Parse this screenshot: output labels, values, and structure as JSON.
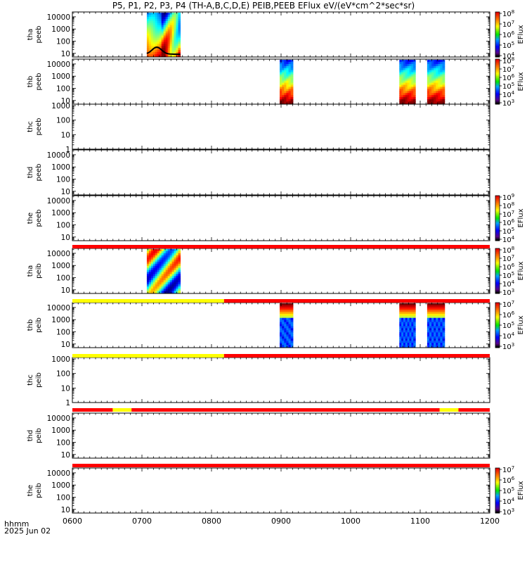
{
  "chart_data": {
    "type": "heatmap",
    "title": "P5, P1, P2, P3, P4 (TH-A,B,C,D,E) PEIB,PEEB EFlux eV/(eV*cm^2*sec*sr)",
    "x_ticks": [
      "0600",
      "0700",
      "0800",
      "0900",
      "1000",
      "1100",
      "1200"
    ],
    "x_range_hours": [
      6,
      12
    ],
    "footer": {
      "hhmm": "hhmm",
      "date": "2025 Jun 02"
    },
    "colorbar_label": "EFlux",
    "panels": [
      {
        "label": [
          "tha",
          "peeb"
        ],
        "y_ticks": [
          "10000",
          "1000",
          "100",
          "10"
        ],
        "ylog": [
          0.7,
          4.4
        ],
        "colorbar": [
          "10^8",
          "10^7",
          "10^6",
          "10^5",
          "10^4"
        ],
        "spectra": [
          {
            "start": 7.07,
            "end": 7.55
          }
        ]
      },
      {
        "label": [
          "thb",
          "peeb"
        ],
        "y_ticks": [
          "10000",
          "1000",
          "100",
          "10"
        ],
        "ylog": [
          0.7,
          4.4
        ],
        "colorbar": [
          "10^8",
          "10^7",
          "10^6",
          "10^5",
          "10^4",
          "10^3"
        ],
        "spectra": [
          {
            "start": 8.98,
            "end": 9.17
          },
          {
            "start": 10.7,
            "end": 10.93
          },
          {
            "start": 11.1,
            "end": 11.35
          }
        ]
      },
      {
        "label": [
          "thc",
          "peeb"
        ],
        "y_ticks": [
          "1000",
          "100",
          "10",
          "1"
        ],
        "ylog": [
          0,
          3.1
        ],
        "colorbar": null,
        "spectra": []
      },
      {
        "label": [
          "thd",
          "peeb"
        ],
        "y_ticks": [
          "10000",
          "1000",
          "100",
          "10"
        ],
        "ylog": [
          0.7,
          4.4
        ],
        "colorbar": null,
        "spectra": []
      },
      {
        "label": [
          "the",
          "peeb"
        ],
        "y_ticks": [
          "10000",
          "1000",
          "100",
          "10"
        ],
        "ylog": [
          0.7,
          4.4
        ],
        "colorbar": [
          "10^9",
          "10^8",
          "10^7",
          "10^6",
          "10^5",
          "10^4"
        ],
        "spectra": []
      },
      {
        "label": [
          "tha",
          "peib"
        ],
        "y_ticks": [
          "10000",
          "1000",
          "100",
          "10"
        ],
        "ylog": [
          0.7,
          4.4
        ],
        "colorbar": [
          "10^8",
          "10^7",
          "10^6",
          "10^5",
          "10^4",
          "10^3"
        ],
        "spectra": [
          {
            "start": 7.07,
            "end": 7.55
          }
        ]
      },
      {
        "label": [
          "thb",
          "peib"
        ],
        "y_ticks": [
          "10000",
          "1000",
          "100",
          "10"
        ],
        "ylog": [
          0.7,
          4.4
        ],
        "colorbar": [
          "10^7",
          "10^6",
          "10^5",
          "10^4",
          "10^3"
        ],
        "spectra": [
          {
            "start": 8.98,
            "end": 9.17
          },
          {
            "start": 10.7,
            "end": 10.93
          },
          {
            "start": 11.1,
            "end": 11.35
          }
        ]
      },
      {
        "label": [
          "thc",
          "peib"
        ],
        "y_ticks": [
          "1000",
          "100",
          "10",
          "1"
        ],
        "ylog": [
          0,
          3.1
        ],
        "colorbar": null,
        "spectra": []
      },
      {
        "label": [
          "thd",
          "peib"
        ],
        "y_ticks": [
          "10000",
          "1000",
          "100",
          "10"
        ],
        "ylog": [
          0.7,
          4.4
        ],
        "colorbar": null,
        "spectra": []
      },
      {
        "label": [
          "the",
          "peib"
        ],
        "y_ticks": [
          "10000",
          "1000",
          "100",
          "10"
        ],
        "ylog": [
          0.7,
          4.4
        ],
        "colorbar": [
          "10^7",
          "10^6",
          "10^5",
          "10^4",
          "10^3"
        ],
        "spectra": []
      }
    ],
    "status_bars": [
      {
        "after_panel": 4,
        "segments": [
          {
            "start": 6.0,
            "end": 12.0,
            "color": "#ff0000"
          }
        ]
      },
      {
        "after_panel": 5,
        "segments": [
          {
            "start": 6.0,
            "end": 8.18,
            "color": "#ffff00"
          },
          {
            "start": 8.18,
            "end": 12.0,
            "color": "#ff0000"
          }
        ]
      },
      {
        "after_panel": 6,
        "segments": [
          {
            "start": 6.0,
            "end": 8.18,
            "color": "#ffff00"
          },
          {
            "start": 8.18,
            "end": 12.0,
            "color": "#ff0000"
          }
        ]
      },
      {
        "after_panel": 7,
        "segments": [
          {
            "start": 6.0,
            "end": 6.58,
            "color": "#ff0000"
          },
          {
            "start": 6.58,
            "end": 6.85,
            "color": "#ffff00"
          },
          {
            "start": 6.85,
            "end": 11.28,
            "color": "#ff0000"
          },
          {
            "start": 11.28,
            "end": 11.55,
            "color": "#ffff00"
          },
          {
            "start": 11.55,
            "end": 12.0,
            "color": "#ff0000"
          }
        ]
      },
      {
        "after_panel": 8,
        "segments": [
          {
            "start": 6.0,
            "end": 12.0,
            "color": "#ff0000"
          }
        ]
      }
    ]
  }
}
